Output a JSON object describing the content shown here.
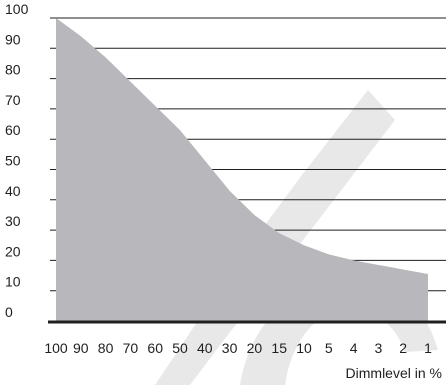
{
  "chart_data": {
    "type": "area",
    "title": "",
    "xlabel": "Dimmlevel in %",
    "ylabel": "",
    "x_categories": [
      "100",
      "90",
      "80",
      "70",
      "60",
      "50",
      "40",
      "30",
      "20",
      "15",
      "10",
      "5",
      "4",
      "3",
      "2",
      "1"
    ],
    "y_ticks": [
      "0",
      "10",
      "20",
      "30",
      "40",
      "50",
      "60",
      "70",
      "80",
      "90",
      "100"
    ],
    "ylim": [
      0,
      100
    ],
    "grid": true,
    "series": [
      {
        "values": [
          100,
          94,
          87,
          79,
          71,
          63,
          53,
          43,
          35,
          29,
          25,
          22,
          20,
          18.5,
          17,
          15.5
        ]
      }
    ],
    "colors": {
      "area": "#b8b8bc",
      "grid": "#1f1f1f",
      "axis": "#1f1f1f",
      "watermark": "#e8e8e8"
    }
  }
}
